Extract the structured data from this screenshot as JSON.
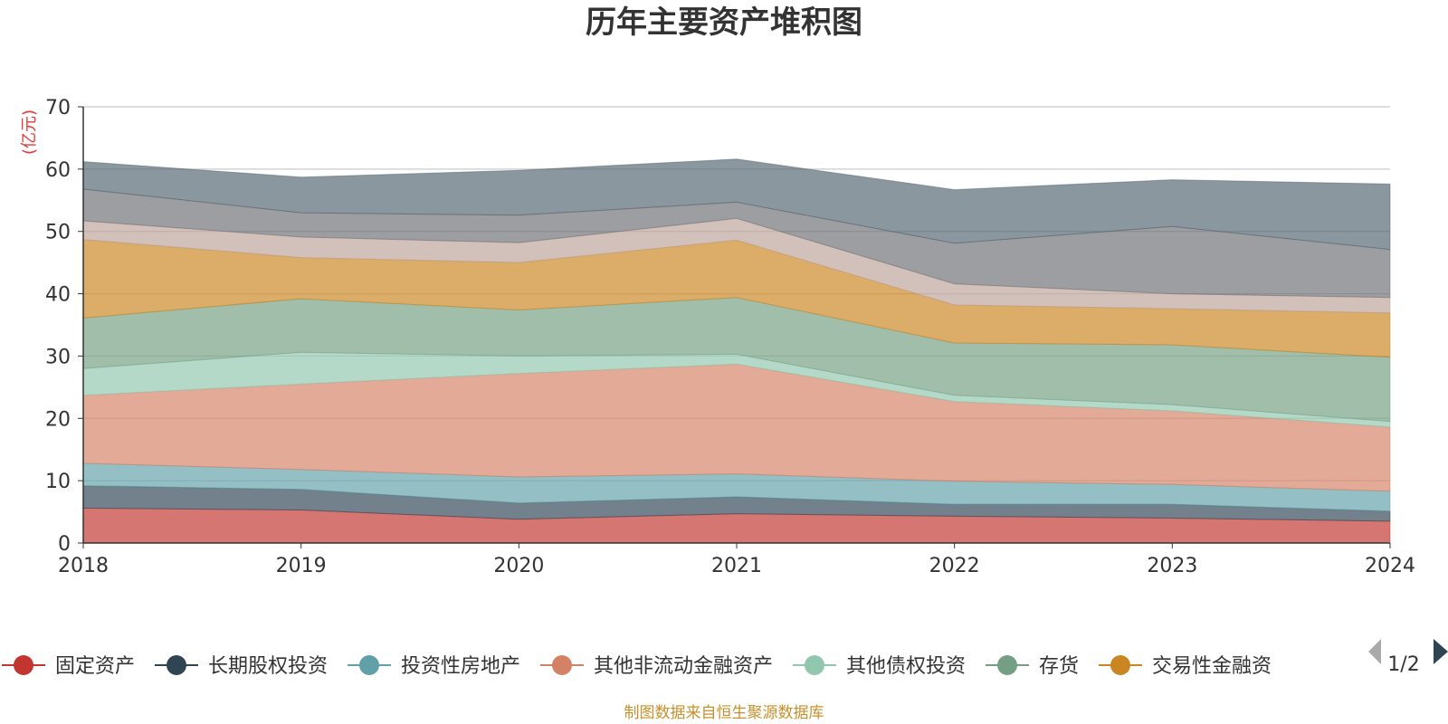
{
  "title": "历年主要资产堆积图",
  "source_note": "制图数据来自恒生聚源数据库",
  "legend_page": "1/2",
  "chart_data": {
    "type": "area",
    "stacked": true,
    "title": "历年主要资产堆积图",
    "unit_label": "(亿元)",
    "x": [
      "2018",
      "2019",
      "2020",
      "2021",
      "2022",
      "2023",
      "2024"
    ],
    "ylim": [
      0,
      70
    ],
    "yticks": [
      "0",
      "10",
      "20",
      "30",
      "40",
      "50",
      "60",
      "70"
    ],
    "grid": true,
    "legend_position": "bottom",
    "series": [
      {
        "name": "固定资产",
        "color": "#c23531",
        "values": [
          5.6,
          5.3,
          3.8,
          4.7,
          4.3,
          4.0,
          3.5
        ]
      },
      {
        "name": "长期股权投资",
        "color": "#2f4554",
        "values": [
          3.6,
          3.3,
          2.6,
          2.7,
          1.9,
          2.2,
          1.6
        ]
      },
      {
        "name": "投资性房地产",
        "color": "#61a0a8",
        "values": [
          3.6,
          3.2,
          4.2,
          3.7,
          3.7,
          3.2,
          3.2
        ]
      },
      {
        "name": "其他非流动金融资产",
        "color": "#d48265",
        "values": [
          10.9,
          13.7,
          16.6,
          17.6,
          12.8,
          11.8,
          10.3
        ]
      },
      {
        "name": "其他债权投资",
        "color": "#91c7ae",
        "values": [
          4.3,
          5.1,
          2.8,
          1.6,
          1.0,
          1.0,
          0.9
        ]
      },
      {
        "name": "存货",
        "color": "#749f83",
        "values": [
          8.1,
          8.6,
          7.4,
          9.1,
          8.4,
          9.6,
          10.3
        ]
      },
      {
        "name": "交易性金融资",
        "color": "#ca8622",
        "values": [
          12.6,
          6.6,
          7.6,
          9.2,
          6.1,
          5.8,
          7.1
        ]
      },
      {
        "name": "",
        "color": "#bda29a",
        "values": [
          3.0,
          3.3,
          3.2,
          3.5,
          3.4,
          2.4,
          2.5
        ]
      },
      {
        "name": "",
        "color": "#6e7074",
        "values": [
          5.1,
          3.9,
          4.4,
          2.6,
          6.5,
          10.8,
          7.7
        ]
      },
      {
        "name": "",
        "color": "#546570",
        "values": [
          4.4,
          5.7,
          7.2,
          6.9,
          8.6,
          7.5,
          10.5
        ]
      }
    ]
  }
}
